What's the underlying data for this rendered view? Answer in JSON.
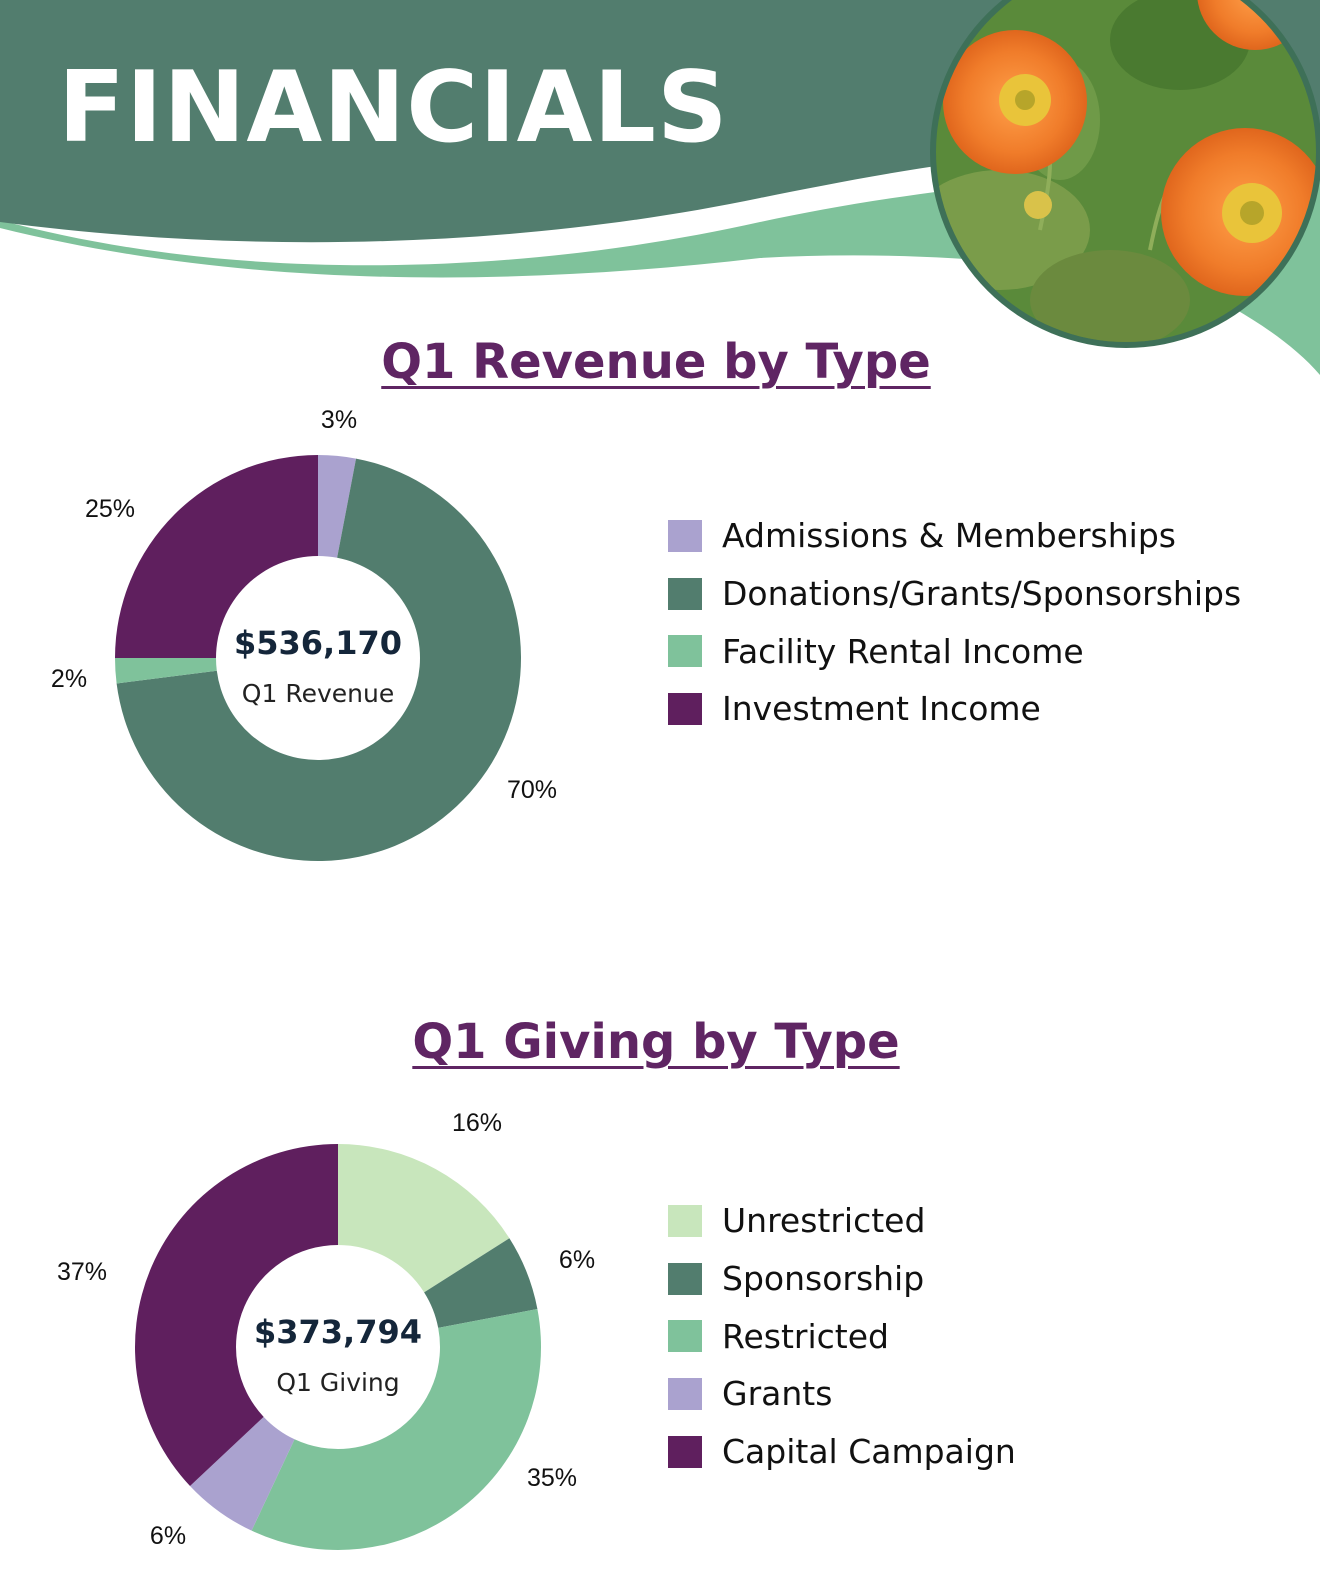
{
  "header": {
    "title": "FINANCIALS"
  },
  "colors": {
    "dark_green": "#527d6e",
    "light_green": "#7fc29b",
    "pale_green": "#c8e6bc",
    "lavender": "#aaa2cf",
    "purple": "#5f1f5e",
    "title_purple": "#5f2563",
    "poppy_orange": "#f07c2a"
  },
  "photo": {
    "icon": "orange-poppy-flowers-photo"
  },
  "chart_data": [
    {
      "type": "pie",
      "title": "Q1 Revenue by Type",
      "center_value": "$536,170",
      "center_label": "Q1 Revenue",
      "legend_position": "right",
      "categories": [
        "Admissions & Memberships",
        "Donations/Grants/Sponsorships",
        "Facility Rental Income",
        "Investment Income"
      ],
      "values": [
        3,
        70,
        2,
        25
      ],
      "labels": [
        "3%",
        "70%",
        "2%",
        "25%"
      ],
      "slice_colors": [
        "#aaa2cf",
        "#527d6e",
        "#7fc29b",
        "#5f1f5e"
      ]
    },
    {
      "type": "pie",
      "title": "Q1 Giving by Type",
      "center_value": "$373,794",
      "center_label": "Q1 Giving",
      "legend_position": "right",
      "categories": [
        "Unrestricted",
        "Sponsorship",
        "Restricted",
        "Grants",
        "Capital Campaign"
      ],
      "values": [
        16,
        6,
        35,
        6,
        37
      ],
      "labels": [
        "16%",
        "6%",
        "35%",
        "6%",
        "37%"
      ],
      "slice_colors": [
        "#c8e6bc",
        "#527d6e",
        "#7fc29b",
        "#aaa2cf",
        "#5f1f5e"
      ]
    }
  ]
}
